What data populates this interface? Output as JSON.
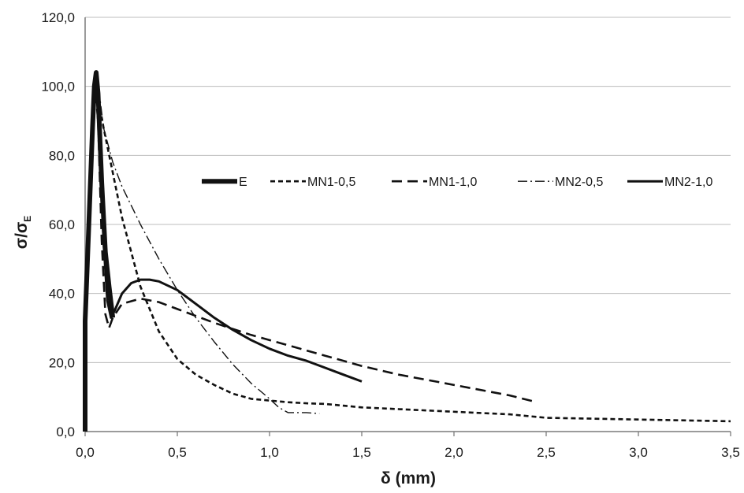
{
  "chart_data": {
    "type": "line",
    "xlabel": "δ (mm)",
    "ylabel": "σ/σ",
    "ylabel_sub": "E",
    "xlim": [
      0,
      3.5
    ],
    "ylim": [
      0,
      120
    ],
    "x_ticks": [
      "0,0",
      "0,5",
      "1,0",
      "1,5",
      "2,0",
      "2,5",
      "3,0",
      "3,5"
    ],
    "y_ticks": [
      "0,0",
      "20,0",
      "40,0",
      "60,0",
      "80,0",
      "100,0",
      "120,0"
    ],
    "grid": "horizontal",
    "legend": "center-right",
    "series": [
      {
        "name": "E",
        "style": "thick-solid",
        "points": [
          [
            0.0,
            0
          ],
          [
            0.0,
            32
          ],
          [
            0.02,
            60
          ],
          [
            0.04,
            88
          ],
          [
            0.05,
            100
          ],
          [
            0.06,
            104
          ],
          [
            0.07,
            98
          ],
          [
            0.09,
            72
          ],
          [
            0.11,
            52
          ],
          [
            0.13,
            42
          ],
          [
            0.15,
            33
          ]
        ]
      },
      {
        "name": "MN1-0,5",
        "style": "short-dash",
        "points": [
          [
            0.0,
            30
          ],
          [
            0.03,
            75
          ],
          [
            0.05,
            98
          ],
          [
            0.07,
            97
          ],
          [
            0.1,
            88
          ],
          [
            0.15,
            75
          ],
          [
            0.2,
            62
          ],
          [
            0.3,
            42
          ],
          [
            0.4,
            29
          ],
          [
            0.5,
            21
          ],
          [
            0.6,
            16.5
          ],
          [
            0.7,
            13.5
          ],
          [
            0.8,
            11
          ],
          [
            0.9,
            9.5
          ],
          [
            1.0,
            9
          ],
          [
            1.1,
            8.5
          ],
          [
            1.2,
            8.2
          ],
          [
            1.3,
            8
          ],
          [
            1.4,
            7.5
          ],
          [
            1.5,
            7
          ],
          [
            1.7,
            6.5
          ],
          [
            1.9,
            6
          ],
          [
            2.1,
            5.5
          ],
          [
            2.3,
            5
          ],
          [
            2.5,
            4
          ],
          [
            3.0,
            3.5
          ],
          [
            3.5,
            3
          ]
        ]
      },
      {
        "name": "MN1-1,0",
        "style": "long-dash",
        "points": [
          [
            0.0,
            35
          ],
          [
            0.03,
            80
          ],
          [
            0.05,
            103
          ],
          [
            0.07,
            90
          ],
          [
            0.09,
            55
          ],
          [
            0.11,
            34
          ],
          [
            0.13,
            30
          ],
          [
            0.15,
            33
          ],
          [
            0.2,
            37
          ],
          [
            0.3,
            38.5
          ],
          [
            0.4,
            37.5
          ],
          [
            0.5,
            35.5
          ],
          [
            0.7,
            31.5
          ],
          [
            0.9,
            28
          ],
          [
            1.1,
            25
          ],
          [
            1.3,
            22
          ],
          [
            1.5,
            19
          ],
          [
            1.7,
            16.5
          ],
          [
            1.9,
            14.5
          ],
          [
            2.1,
            12.5
          ],
          [
            2.3,
            10.5
          ],
          [
            2.45,
            8.5
          ]
        ]
      },
      {
        "name": "MN2-0,5",
        "style": "dash-dot",
        "points": [
          [
            0.0,
            35
          ],
          [
            0.03,
            80
          ],
          [
            0.05,
            102
          ],
          [
            0.07,
            101
          ],
          [
            0.1,
            88
          ],
          [
            0.15,
            78
          ],
          [
            0.2,
            71
          ],
          [
            0.3,
            60
          ],
          [
            0.4,
            50
          ],
          [
            0.5,
            41
          ],
          [
            0.6,
            33
          ],
          [
            0.7,
            26
          ],
          [
            0.8,
            19.5
          ],
          [
            0.9,
            14
          ],
          [
            1.0,
            9.5
          ],
          [
            1.05,
            7
          ],
          [
            1.1,
            5.5
          ],
          [
            1.15,
            5.5
          ],
          [
            1.2,
            5.5
          ],
          [
            1.27,
            5.2
          ]
        ]
      },
      {
        "name": "MN2-1,0",
        "style": "solid",
        "points": [
          [
            0.0,
            33
          ],
          [
            0.03,
            80
          ],
          [
            0.05,
            100
          ],
          [
            0.06,
            102
          ],
          [
            0.08,
            85
          ],
          [
            0.1,
            55
          ],
          [
            0.12,
            38
          ],
          [
            0.14,
            33
          ],
          [
            0.16,
            35
          ],
          [
            0.2,
            40
          ],
          [
            0.25,
            43
          ],
          [
            0.3,
            44
          ],
          [
            0.35,
            44
          ],
          [
            0.4,
            43.5
          ],
          [
            0.5,
            41
          ],
          [
            0.6,
            37
          ],
          [
            0.7,
            33
          ],
          [
            0.8,
            29.5
          ],
          [
            0.9,
            26.5
          ],
          [
            1.0,
            24
          ],
          [
            1.1,
            22
          ],
          [
            1.2,
            20.5
          ],
          [
            1.3,
            18.5
          ],
          [
            1.4,
            16.5
          ],
          [
            1.5,
            14.5
          ]
        ]
      }
    ]
  }
}
